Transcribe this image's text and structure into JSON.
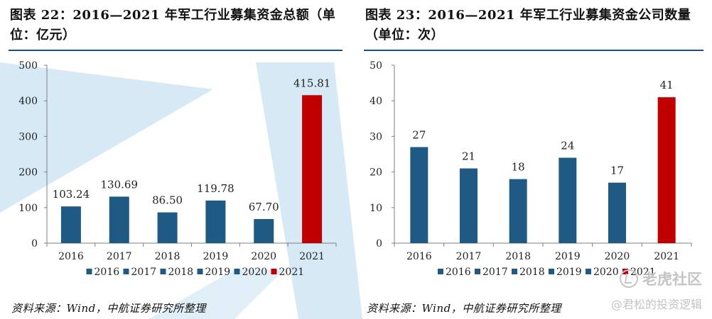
{
  "charts": [
    {
      "title": "图表 22：2016—2021 年军工行业募集资金总额（单位：亿元）",
      "source": "资料来源：Wind，中航证券研究所整理"
    },
    {
      "title": "图表 23：2016—2021 年军工行业募集资金公司数量（单位：次）",
      "source": "资料来源：Wind，中航证券研究所整理"
    }
  ],
  "watermark": {
    "line1": "老虎社区",
    "line2": "@君松的投资逻辑"
  },
  "colors": {
    "bar": "#1f5a84",
    "highlight": "#c00000",
    "axis": "#7f7f7f",
    "rule": "#1f4e79",
    "deco": "#c9e2f2"
  },
  "chart_data": [
    {
      "type": "bar",
      "title": "图表 22：2016—2021 年军工行业募集资金总额（单位：亿元）",
      "categories": [
        "2016",
        "2017",
        "2018",
        "2019",
        "2020",
        "2021"
      ],
      "values": [
        103.24,
        130.69,
        86.5,
        119.78,
        67.7,
        415.81
      ],
      "value_labels": [
        "103.24",
        "130.69",
        "86.50",
        "119.78",
        "67.70",
        "415.81"
      ],
      "yticks": [
        "0",
        "100",
        "200",
        "300",
        "400",
        "500"
      ],
      "ylim": [
        0,
        500
      ],
      "legend": [
        "2016",
        "2017",
        "2018",
        "2019",
        "2020",
        "2021"
      ],
      "legend_position": "bottom",
      "grid": false
    },
    {
      "type": "bar",
      "title": "图表 23：2016—2021 年军工行业募集资金公司数量（单位：次）",
      "categories": [
        "2016",
        "2017",
        "2018",
        "2019",
        "2020",
        "2021"
      ],
      "values": [
        27,
        21,
        18,
        24,
        17,
        41
      ],
      "value_labels": [
        "27",
        "21",
        "18",
        "24",
        "17",
        "41"
      ],
      "yticks": [
        "0",
        "10",
        "20",
        "30",
        "40",
        "50"
      ],
      "ylim": [
        0,
        50
      ],
      "legend": [
        "2016",
        "2017",
        "2018",
        "2019",
        "2020",
        "2021"
      ],
      "legend_position": "bottom",
      "grid": false
    }
  ]
}
